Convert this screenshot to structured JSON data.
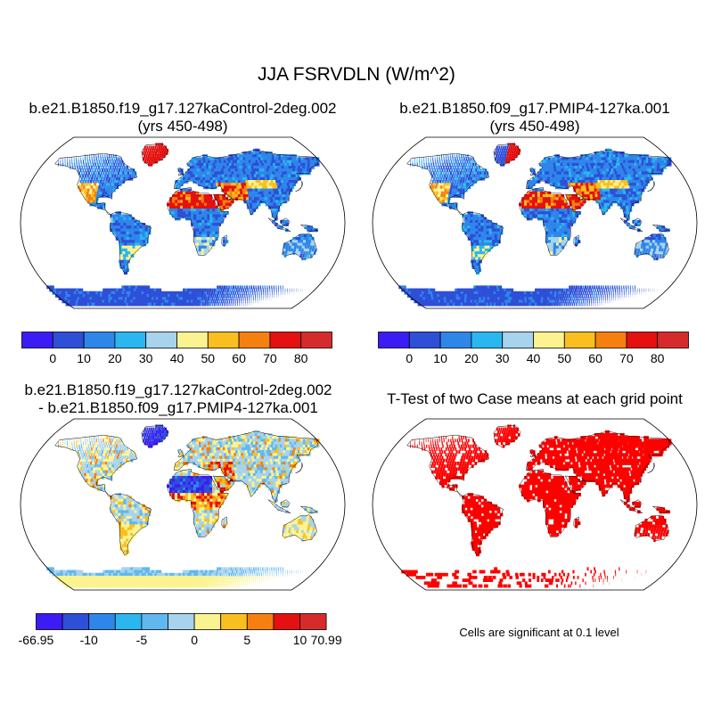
{
  "figure": {
    "title": "JJA FSRVDLN (W/m^2)",
    "panels": [
      {
        "id": "p1",
        "title_line1": "b.e21.B1850.f19_g17.127kaControl-2deg.002",
        "title_line2": "(yrs 450-498)"
      },
      {
        "id": "p2",
        "title_line1": "b.e21.B1850.f09_g17.PMIP4-127ka.001",
        "title_line2": "(yrs 450-498)"
      },
      {
        "id": "p3",
        "title_line1": "b.e21.B1850.f19_g17.127kaControl-2deg.002",
        "title_line2": "- b.e21.B1850.f09_g17.PMIP4-127ka.001"
      },
      {
        "id": "p4",
        "title_line1": "T-Test of two Case means at each grid point",
        "title_line2": ""
      }
    ],
    "significance_note": "Cells are significant at 0.1 level"
  },
  "colorbars": {
    "abs": {
      "colors": [
        "#3b1cf5",
        "#2e4fd8",
        "#2f86ea",
        "#2ab7f0",
        "#a7d3ec",
        "#fbf38f",
        "#f9bf1e",
        "#f6800f",
        "#e51010",
        "#d62b2b"
      ],
      "labels": [
        "0",
        "10",
        "20",
        "30",
        "40",
        "50",
        "60",
        "70",
        "80"
      ]
    },
    "diff": {
      "colors": [
        "#3b1cf5",
        "#2e4fd8",
        "#2f86ea",
        "#2ab7f0",
        "#60b8ef",
        "#a7d3ec",
        "#fbf38f",
        "#f9bf1e",
        "#f6800f",
        "#e51010",
        "#d62b2b"
      ],
      "labels": [
        "-66.95",
        "-10",
        "-5",
        "0",
        "5",
        "10",
        "70.99"
      ],
      "label_positions": [
        0,
        2,
        4,
        6,
        8,
        10,
        11
      ]
    }
  },
  "chart_data": [
    {
      "type": "heatmap",
      "title": "b.e21.B1850.f19_g17.127kaControl-2deg.002 (yrs 450-498)",
      "projection": "Robinson",
      "colorbar_levels": [
        0,
        10,
        20,
        30,
        40,
        50,
        60,
        70,
        80
      ]
    },
    {
      "type": "heatmap",
      "title": "b.e21.B1850.f09_g17.PMIP4-127ka.001 (yrs 450-498)",
      "projection": "Robinson",
      "colorbar_levels": [
        0,
        10,
        20,
        30,
        40,
        50,
        60,
        70,
        80
      ]
    },
    {
      "type": "heatmap",
      "title": "b.e21.B1850.f19_g17.127kaControl-2deg.002 - b.e21.B1850.f09_g17.PMIP4-127ka.001",
      "projection": "Robinson",
      "colorbar_labels": [
        "-66.95",
        "-10",
        "-5",
        "0",
        "5",
        "10",
        "70.99"
      ]
    },
    {
      "type": "heatmap",
      "title": "T-Test of two Case means at each grid point",
      "projection": "Robinson",
      "significance_level": 0.1
    }
  ]
}
